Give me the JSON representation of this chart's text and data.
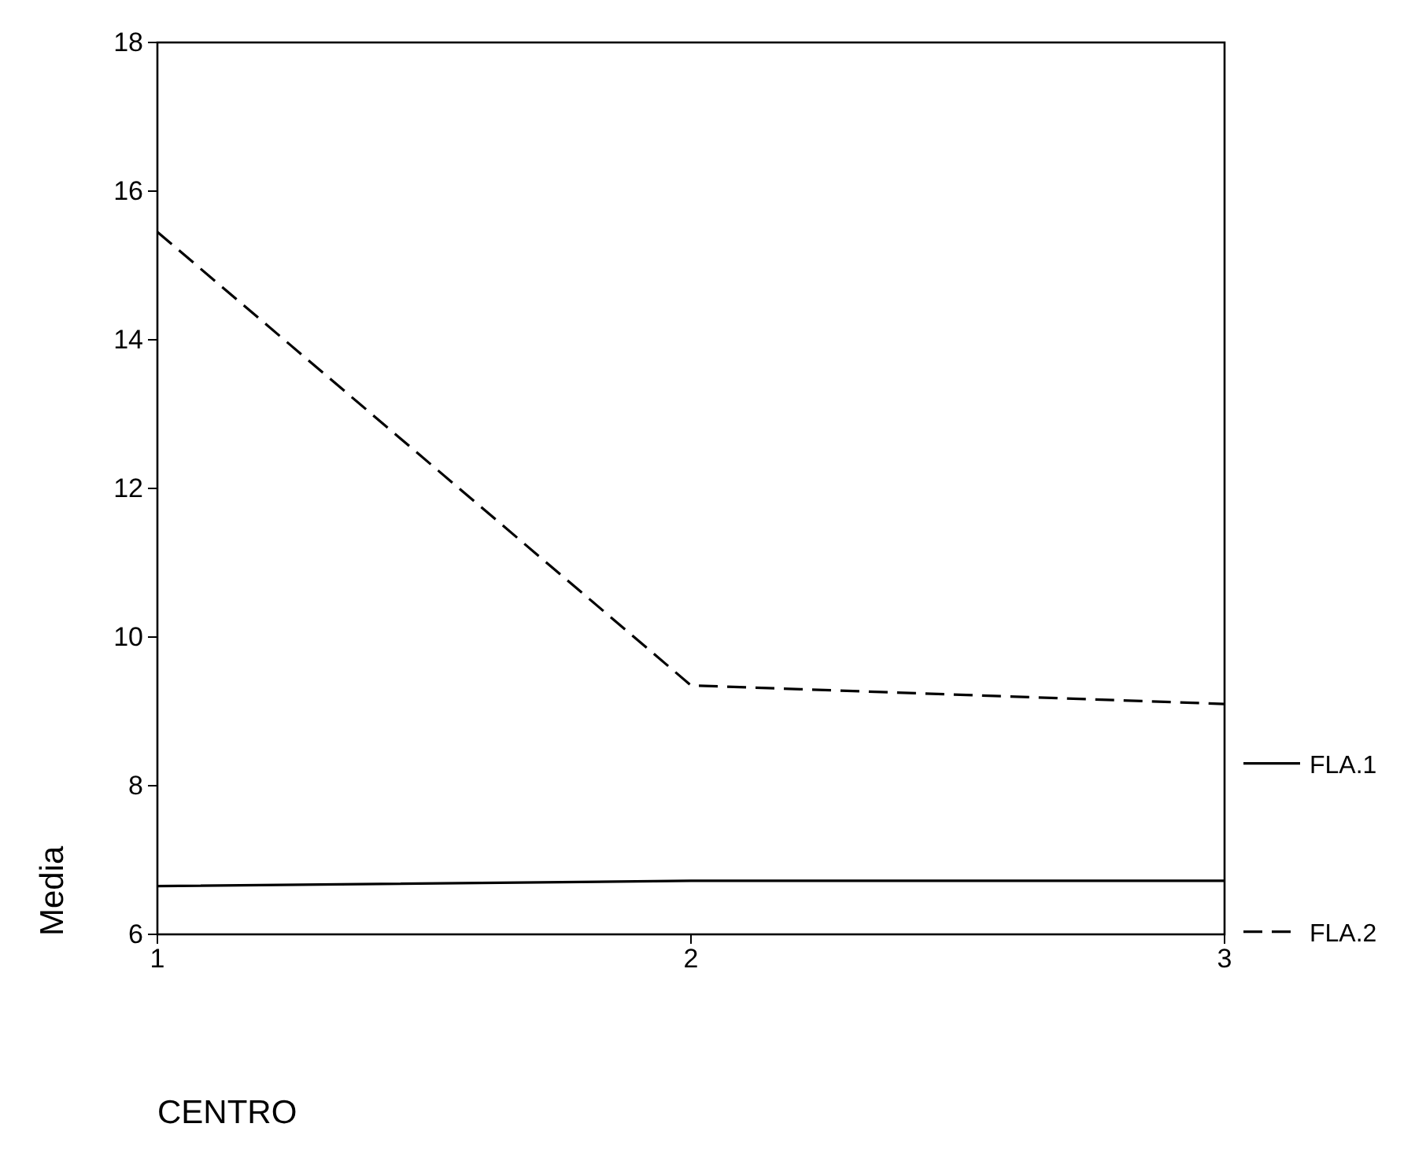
{
  "chart_data": {
    "type": "line",
    "xlabel": "CENTRO",
    "ylabel": "Media",
    "x": [
      1,
      2,
      3
    ],
    "xlim": [
      1,
      3
    ],
    "xticks": [
      1,
      2,
      3
    ],
    "ylim": [
      6,
      18
    ],
    "yticks": [
      6,
      8,
      10,
      12,
      14,
      16,
      18
    ],
    "grid": false,
    "legend": "right",
    "marker": "none",
    "series": [
      {
        "name": "FLA.1",
        "color": "#000000",
        "line_style": "solid",
        "values": [
          6.65,
          6.72,
          6.72
        ]
      },
      {
        "name": "FLA.2",
        "color": "#000000",
        "line_style": "dashed",
        "values": [
          15.45,
          9.35,
          9.1
        ]
      }
    ]
  }
}
